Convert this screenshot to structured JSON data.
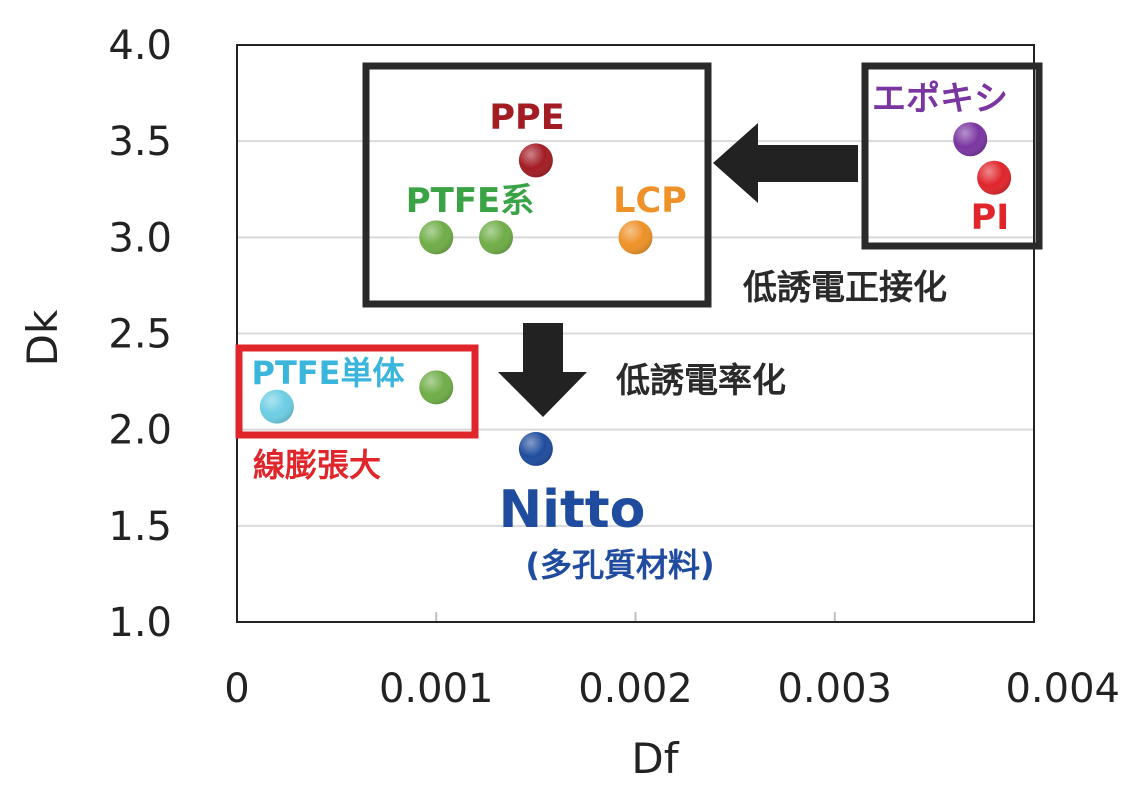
{
  "chart_data": {
    "type": "scatter",
    "xlabel": "Df",
    "ylabel": "Dk",
    "xlim": [
      0,
      0.004
    ],
    "ylim": [
      1.0,
      4.0
    ],
    "x_ticks": [
      {
        "value": 0,
        "label": "0"
      },
      {
        "value": 0.001,
        "label": "0.001"
      },
      {
        "value": 0.002,
        "label": "0.002"
      },
      {
        "value": 0.003,
        "label": "0.003"
      },
      {
        "value": 0.004,
        "label": "0.004"
      }
    ],
    "y_ticks": [
      {
        "value": 1.0,
        "label": "1.0"
      },
      {
        "value": 1.5,
        "label": "1.5"
      },
      {
        "value": 2.0,
        "label": "2.0"
      },
      {
        "value": 2.5,
        "label": "2.5"
      },
      {
        "value": 3.0,
        "label": "3.0"
      },
      {
        "value": 3.5,
        "label": "3.5"
      },
      {
        "value": 4.0,
        "label": "4.0"
      }
    ],
    "grid": {
      "horizontal": true,
      "vertical": true
    },
    "points": [
      {
        "name": "pt-ptfe-single",
        "x": 0.0002,
        "y": 2.12,
        "color": "#6ccde3"
      },
      {
        "name": "pt-ptfe-single-2",
        "x": 0.001,
        "y": 2.22,
        "color": "#6fad47"
      },
      {
        "name": "pt-ptfe-1",
        "x": 0.001,
        "y": 3.0,
        "color": "#6fad47"
      },
      {
        "name": "pt-ptfe-2",
        "x": 0.0013,
        "y": 3.0,
        "color": "#6fad47"
      },
      {
        "name": "pt-ppe",
        "x": 0.0015,
        "y": 3.4,
        "color": "#a31c24"
      },
      {
        "name": "pt-lcp",
        "x": 0.002,
        "y": 3.0,
        "color": "#ee9128"
      },
      {
        "name": "pt-nitto",
        "x": 0.0015,
        "y": 1.9,
        "color": "#1f4c9e"
      },
      {
        "name": "pt-epoxy",
        "x": 0.00368,
        "y": 3.51,
        "color": "#7a35a0"
      },
      {
        "name": "pt-pi",
        "x": 0.0038,
        "y": 3.31,
        "color": "#e0252b"
      }
    ],
    "annotations": {
      "ppe": "PPE",
      "ptfe_family": "PTFE系",
      "lcp": "LCP",
      "epoxy": "エポキシ",
      "pi": "PI",
      "ptfe_single": "PTFE単体",
      "expansion": "線膨張大",
      "nitto": "Nitto",
      "nitto_sub": "(多孔質材料)",
      "low_dk": "低誘電率化",
      "low_tangent": "低誘電正接化"
    },
    "annotation_colors": {
      "ppe": "#a31c24",
      "ptfe": "#3aa345",
      "lcp": "#ee9128",
      "epoxy": "#7a35a0",
      "pi": "#e0252b",
      "ptfe_single": "#3ab6dc",
      "expansion": "#e0252b",
      "nitto": "#1f4c9e",
      "dark": "#2a2a2a",
      "red_box": "#e0252b"
    }
  }
}
